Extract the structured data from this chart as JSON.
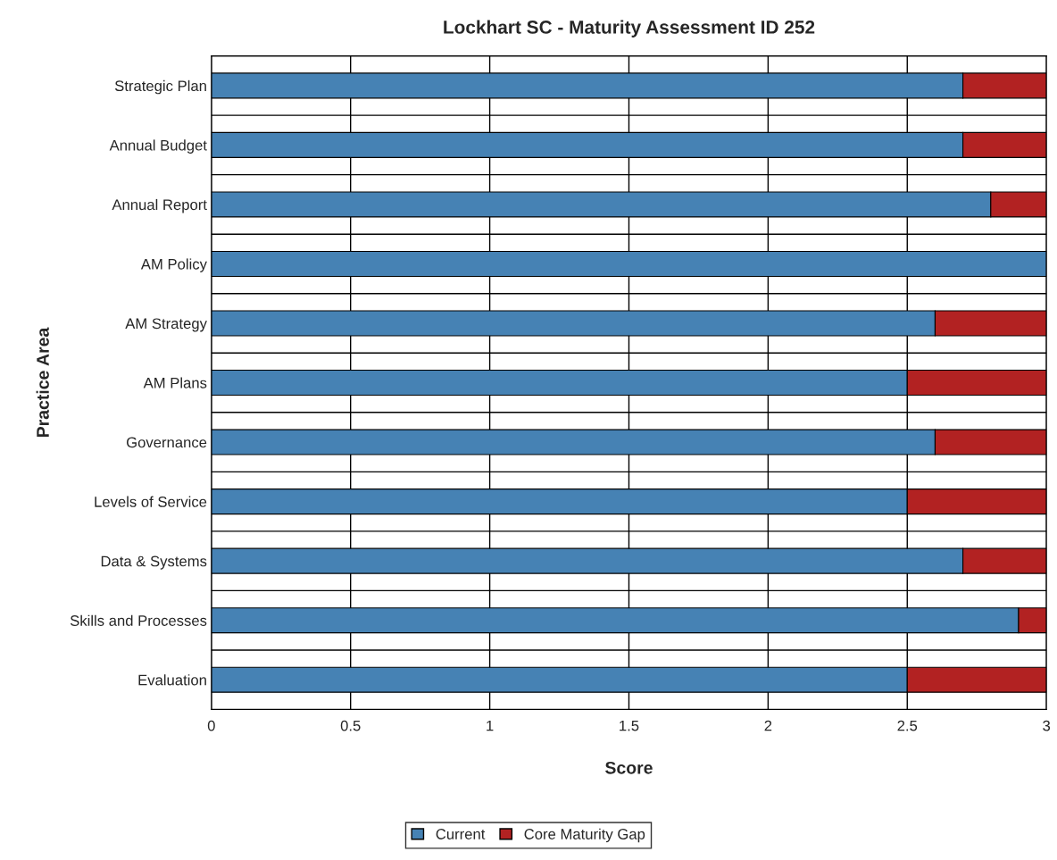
{
  "chart_data": {
    "type": "bar",
    "orientation": "horizontal",
    "stacked": true,
    "title": "Lockhart SC - Maturity Assessment ID 252",
    "xlabel": "Score",
    "ylabel": "Practice Area",
    "categories": [
      "Strategic Plan",
      "Annual Budget",
      "Annual Report",
      "AM Policy",
      "AM Strategy",
      "AM Plans",
      "Governance",
      "Levels of Service",
      "Data & Systems",
      "Skills and Processes",
      "Evaluation"
    ],
    "series": [
      {
        "name": "Current",
        "color": "#4682b4",
        "values": [
          2.7,
          2.7,
          2.8,
          3.0,
          2.6,
          2.5,
          2.6,
          2.5,
          2.7,
          2.9,
          2.5
        ]
      },
      {
        "name": "Core Maturity Gap",
        "color": "#b22222",
        "values": [
          0.3,
          0.3,
          0.2,
          null,
          0.4,
          0.5,
          0.4,
          0.5,
          0.3,
          0.1,
          0.5
        ]
      }
    ],
    "xlim": [
      0,
      3
    ],
    "xticks": [
      0,
      0.5,
      1,
      1.5,
      2,
      2.5,
      3
    ],
    "grid": true,
    "legend": "bottom"
  }
}
